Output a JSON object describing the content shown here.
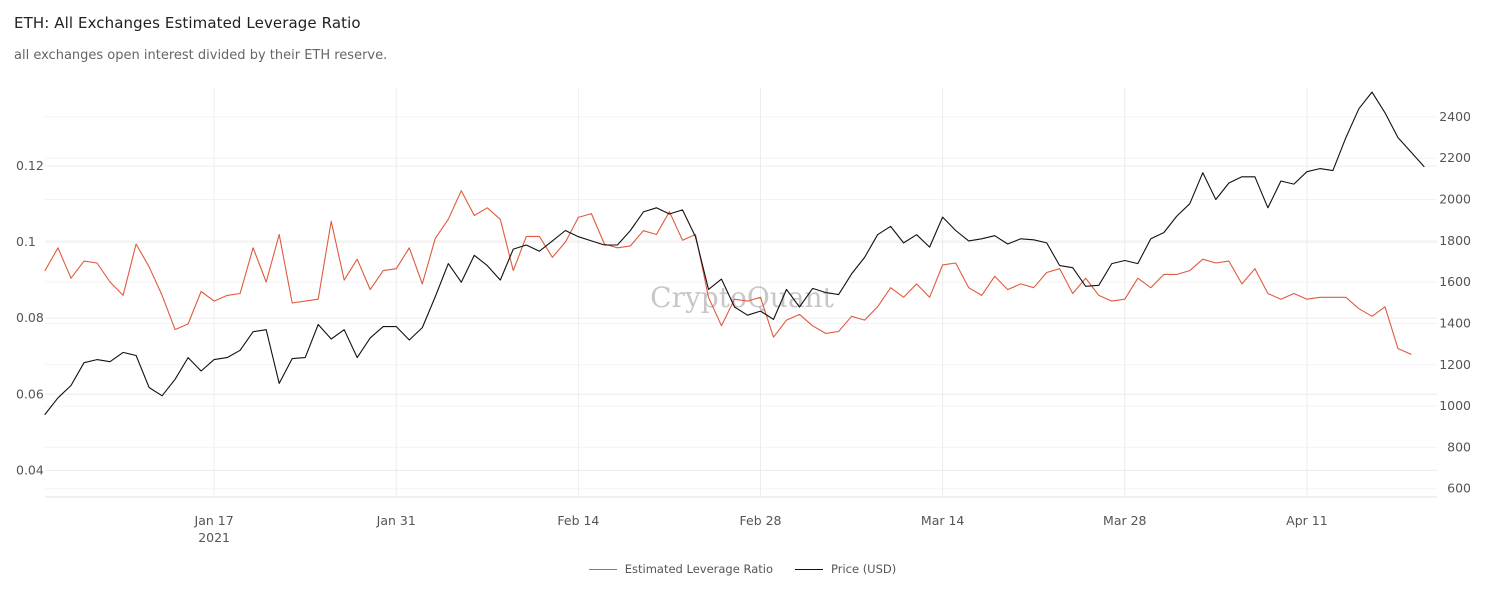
{
  "header": {
    "title": "ETH: All Exchanges Estimated Leverage Ratio",
    "subtitle": "all exchanges open interest divided by their ETH reserve."
  },
  "watermark": "CryptoQuant",
  "chart_data": {
    "type": "line",
    "title": "ETH: All Exchanges Estimated Leverage Ratio",
    "subtitle": "all exchanges open interest divided by their ETH reserve.",
    "x_axis": {
      "type": "date",
      "range": [
        "2021-01-04",
        "2021-04-21"
      ],
      "tick_labels": [
        "Jan 17",
        "Jan 31",
        "Feb 14",
        "Feb 28",
        "Mar 14",
        "Mar 28",
        "Apr 11"
      ],
      "tick_dates": [
        "2021-01-17",
        "2021-01-31",
        "2021-02-14",
        "2021-02-28",
        "2021-03-14",
        "2021-03-28",
        "2021-04-11"
      ],
      "year_label": "2021",
      "grid": true
    },
    "y_left": {
      "tick_labels": [
        "0.04",
        "0.06",
        "0.08",
        "0.1",
        "0.12"
      ],
      "ticks": [
        0.04,
        0.06,
        0.08,
        0.1,
        0.12
      ],
      "range": [
        0.033,
        0.1405
      ],
      "grid": true
    },
    "y_right": {
      "tick_labels": [
        "600",
        "800",
        "1000",
        "1200",
        "1400",
        "1600",
        "1800",
        "2000",
        "2200",
        "2400"
      ],
      "ticks": [
        600,
        800,
        1000,
        1200,
        1400,
        1600,
        1800,
        2000,
        2200,
        2400
      ],
      "range": [
        560,
        2540
      ]
    },
    "legend_position": "bottom-center",
    "series": [
      {
        "name": "Estimated Leverage Ratio",
        "axis": "left",
        "color": "#e05a3f",
        "x_start": "2021-01-04",
        "x_step_days": 1,
        "values": [
          0.0925,
          0.0985,
          0.0905,
          0.095,
          0.0945,
          0.0895,
          0.086,
          0.0995,
          0.0935,
          0.086,
          0.077,
          0.0785,
          0.087,
          0.0845,
          0.086,
          0.0865,
          0.0985,
          0.0895,
          0.102,
          0.084,
          0.0845,
          0.085,
          0.1055,
          0.09,
          0.0955,
          0.0875,
          0.0925,
          0.093,
          0.0985,
          0.089,
          0.101,
          0.106,
          0.1135,
          0.107,
          0.109,
          0.106,
          0.0925,
          0.1015,
          0.1015,
          0.096,
          0.1,
          0.1065,
          0.1075,
          0.0995,
          0.0985,
          0.099,
          0.103,
          0.102,
          0.108,
          0.1005,
          0.102,
          0.0855,
          0.078,
          0.085,
          0.0845,
          0.0855,
          0.075,
          0.0795,
          0.081,
          0.078,
          0.076,
          0.0765,
          0.0805,
          0.0795,
          0.083,
          0.088,
          0.0855,
          0.089,
          0.0855,
          0.094,
          0.0945,
          0.088,
          0.086,
          0.091,
          0.0875,
          0.089,
          0.088,
          0.092,
          0.093,
          0.0865,
          0.0905,
          0.086,
          0.0845,
          0.085,
          0.0905,
          0.088,
          0.0915,
          0.0915,
          0.0925,
          0.0955,
          0.0945,
          0.095,
          0.089,
          0.093,
          0.0865,
          0.085,
          0.0865,
          0.085,
          0.0855,
          0.0855,
          0.0855,
          0.0825,
          0.0805,
          0.083,
          0.072,
          0.0705
        ]
      },
      {
        "name": "Price (USD)",
        "axis": "right",
        "color": "#111111",
        "x_start": "2021-01-04",
        "x_step_days": 1,
        "values": [
          960,
          1040,
          1100,
          1210,
          1225,
          1215,
          1260,
          1245,
          1090,
          1050,
          1130,
          1235,
          1170,
          1225,
          1235,
          1270,
          1360,
          1370,
          1110,
          1230,
          1235,
          1395,
          1325,
          1370,
          1235,
          1330,
          1385,
          1385,
          1320,
          1380,
          1530,
          1690,
          1600,
          1730,
          1680,
          1610,
          1760,
          1780,
          1750,
          1800,
          1850,
          1820,
          1800,
          1780,
          1780,
          1850,
          1940,
          1960,
          1930,
          1950,
          1820,
          1565,
          1615,
          1480,
          1440,
          1460,
          1420,
          1565,
          1480,
          1570,
          1550,
          1540,
          1640,
          1720,
          1830,
          1870,
          1790,
          1830,
          1770,
          1915,
          1850,
          1800,
          1810,
          1825,
          1785,
          1810,
          1805,
          1790,
          1680,
          1670,
          1580,
          1585,
          1690,
          1705,
          1690,
          1810,
          1840,
          1920,
          1980,
          2130,
          2000,
          2080,
          2110,
          2110,
          1960,
          2090,
          2075,
          2135,
          2150,
          2140,
          2300,
          2440,
          2520,
          2420,
          2300,
          2230,
          2160
        ]
      }
    ]
  }
}
